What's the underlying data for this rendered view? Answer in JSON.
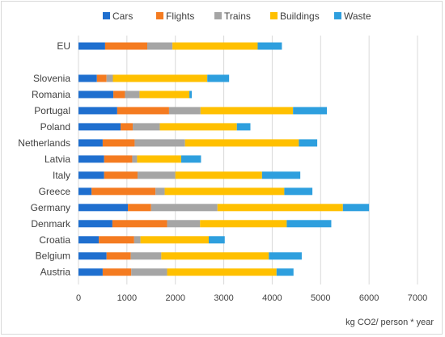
{
  "chart_data": {
    "type": "bar",
    "orientation": "horizontal",
    "stacked": true,
    "xlabel": "kg CO2/ person * year",
    "xlim": [
      0,
      7000
    ],
    "xticks": [
      0,
      1000,
      2000,
      3000,
      4000,
      5000,
      6000,
      7000
    ],
    "grid": "vertical",
    "legend_position": "top",
    "categories": [
      "EU",
      "",
      "Slovenia",
      "Romania",
      "Portugal",
      "Poland",
      "Netherlands",
      "Latvia",
      "Italy",
      "Greece",
      "Germany",
      "Denmark",
      "Croatia",
      "Belgium",
      "Austria"
    ],
    "series": [
      {
        "name": "Cars",
        "color": "#1f6fcf",
        "values": [
          550,
          null,
          380,
          720,
          800,
          870,
          500,
          530,
          530,
          270,
          1020,
          700,
          420,
          580,
          500
        ]
      },
      {
        "name": "Flights",
        "color": "#f47b20",
        "values": [
          870,
          null,
          200,
          240,
          1070,
          250,
          660,
          580,
          690,
          1320,
          480,
          1130,
          730,
          500,
          590
        ]
      },
      {
        "name": "Trains",
        "color": "#a5a5a5",
        "values": [
          520,
          null,
          130,
          300,
          650,
          560,
          1040,
          100,
          780,
          190,
          1370,
          680,
          130,
          630,
          740
        ]
      },
      {
        "name": "Buildings",
        "color": "#ffc000",
        "values": [
          1760,
          null,
          1950,
          1030,
          1910,
          1590,
          2350,
          910,
          1790,
          2470,
          2590,
          1790,
          1410,
          2220,
          2260
        ]
      },
      {
        "name": "Waste",
        "color": "#2e9fde",
        "values": [
          500,
          null,
          450,
          50,
          700,
          280,
          380,
          410,
          790,
          580,
          540,
          920,
          330,
          680,
          350
        ]
      }
    ]
  }
}
